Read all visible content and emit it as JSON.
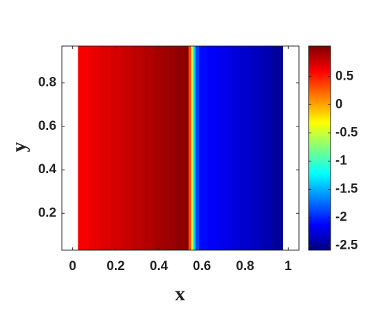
{
  "chart_data": {
    "type": "heatmap",
    "colormap": "jet",
    "x_label": "x",
    "y_label": "y",
    "x": [
      0.05,
      0.1,
      0.15,
      0.2,
      0.25,
      0.3,
      0.35,
      0.4,
      0.45,
      0.5,
      0.53,
      0.545,
      0.555,
      0.565,
      0.575,
      0.6,
      0.65,
      0.7,
      0.75,
      0.8,
      0.85,
      0.9,
      0.95
    ],
    "values": [
      0.62,
      0.66,
      0.7,
      0.74,
      0.78,
      0.82,
      0.86,
      0.9,
      0.94,
      0.98,
      1.0,
      0.3,
      -0.6,
      -1.4,
      -1.9,
      -2.1,
      -2.15,
      -2.2,
      -2.25,
      -2.3,
      -2.35,
      -2.4,
      -2.48
    ],
    "xlim": [
      -0.05,
      1.05
    ],
    "xticks": [
      0,
      0.2,
      0.4,
      0.6,
      0.8,
      1
    ],
    "ylim": [
      0.03,
      0.97
    ],
    "yticks": [
      0.2,
      0.4,
      0.6,
      0.8
    ],
    "clim": [
      -2.58,
      1.04
    ],
    "cticks": [
      -2.5,
      -2,
      -1.5,
      -1,
      -0.5,
      0,
      0.5
    ]
  }
}
